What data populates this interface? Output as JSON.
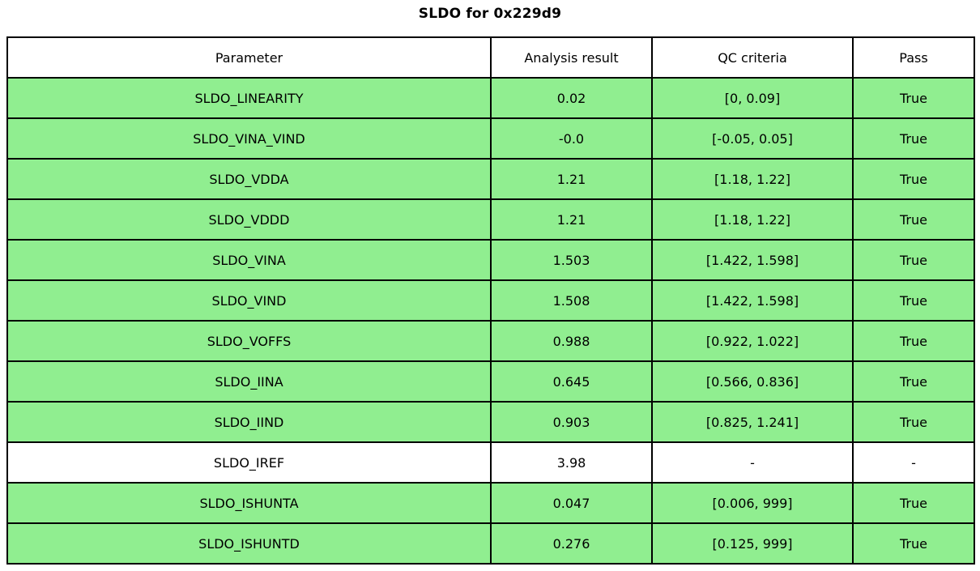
{
  "title": "SLDO for 0x229d9",
  "colors": {
    "pass_row": "#90EE90",
    "neutral_row": "#FFFFFF",
    "header_row": "#FFFFFF",
    "border": "#000000",
    "text": "#000000"
  },
  "chart_data": {
    "type": "table",
    "title": "SLDO for 0x229d9",
    "columns": [
      "Parameter",
      "Analysis result",
      "QC criteria",
      "Pass"
    ],
    "rows": [
      {
        "parameter": "SLDO_LINEARITY",
        "analysis_result": "0.02",
        "qc_criteria": "[0, 0.09]",
        "pass": "True",
        "highlight": true
      },
      {
        "parameter": "SLDO_VINA_VIND",
        "analysis_result": "-0.0",
        "qc_criteria": "[-0.05, 0.05]",
        "pass": "True",
        "highlight": true
      },
      {
        "parameter": "SLDO_VDDA",
        "analysis_result": "1.21",
        "qc_criteria": "[1.18, 1.22]",
        "pass": "True",
        "highlight": true
      },
      {
        "parameter": "SLDO_VDDD",
        "analysis_result": "1.21",
        "qc_criteria": "[1.18, 1.22]",
        "pass": "True",
        "highlight": true
      },
      {
        "parameter": "SLDO_VINA",
        "analysis_result": "1.503",
        "qc_criteria": "[1.422, 1.598]",
        "pass": "True",
        "highlight": true
      },
      {
        "parameter": "SLDO_VIND",
        "analysis_result": "1.508",
        "qc_criteria": "[1.422, 1.598]",
        "pass": "True",
        "highlight": true
      },
      {
        "parameter": "SLDO_VOFFS",
        "analysis_result": "0.988",
        "qc_criteria": "[0.922, 1.022]",
        "pass": "True",
        "highlight": true
      },
      {
        "parameter": "SLDO_IINA",
        "analysis_result": "0.645",
        "qc_criteria": "[0.566, 0.836]",
        "pass": "True",
        "highlight": true
      },
      {
        "parameter": "SLDO_IIND",
        "analysis_result": "0.903",
        "qc_criteria": "[0.825, 1.241]",
        "pass": "True",
        "highlight": true
      },
      {
        "parameter": "SLDO_IREF",
        "analysis_result": "3.98",
        "qc_criteria": "-",
        "pass": "-",
        "highlight": false
      },
      {
        "parameter": "SLDO_ISHUNTA",
        "analysis_result": "0.047",
        "qc_criteria": "[0.006, 999]",
        "pass": "True",
        "highlight": true
      },
      {
        "parameter": "SLDO_ISHUNTD",
        "analysis_result": "0.276",
        "qc_criteria": "[0.125, 999]",
        "pass": "True",
        "highlight": true
      }
    ]
  }
}
